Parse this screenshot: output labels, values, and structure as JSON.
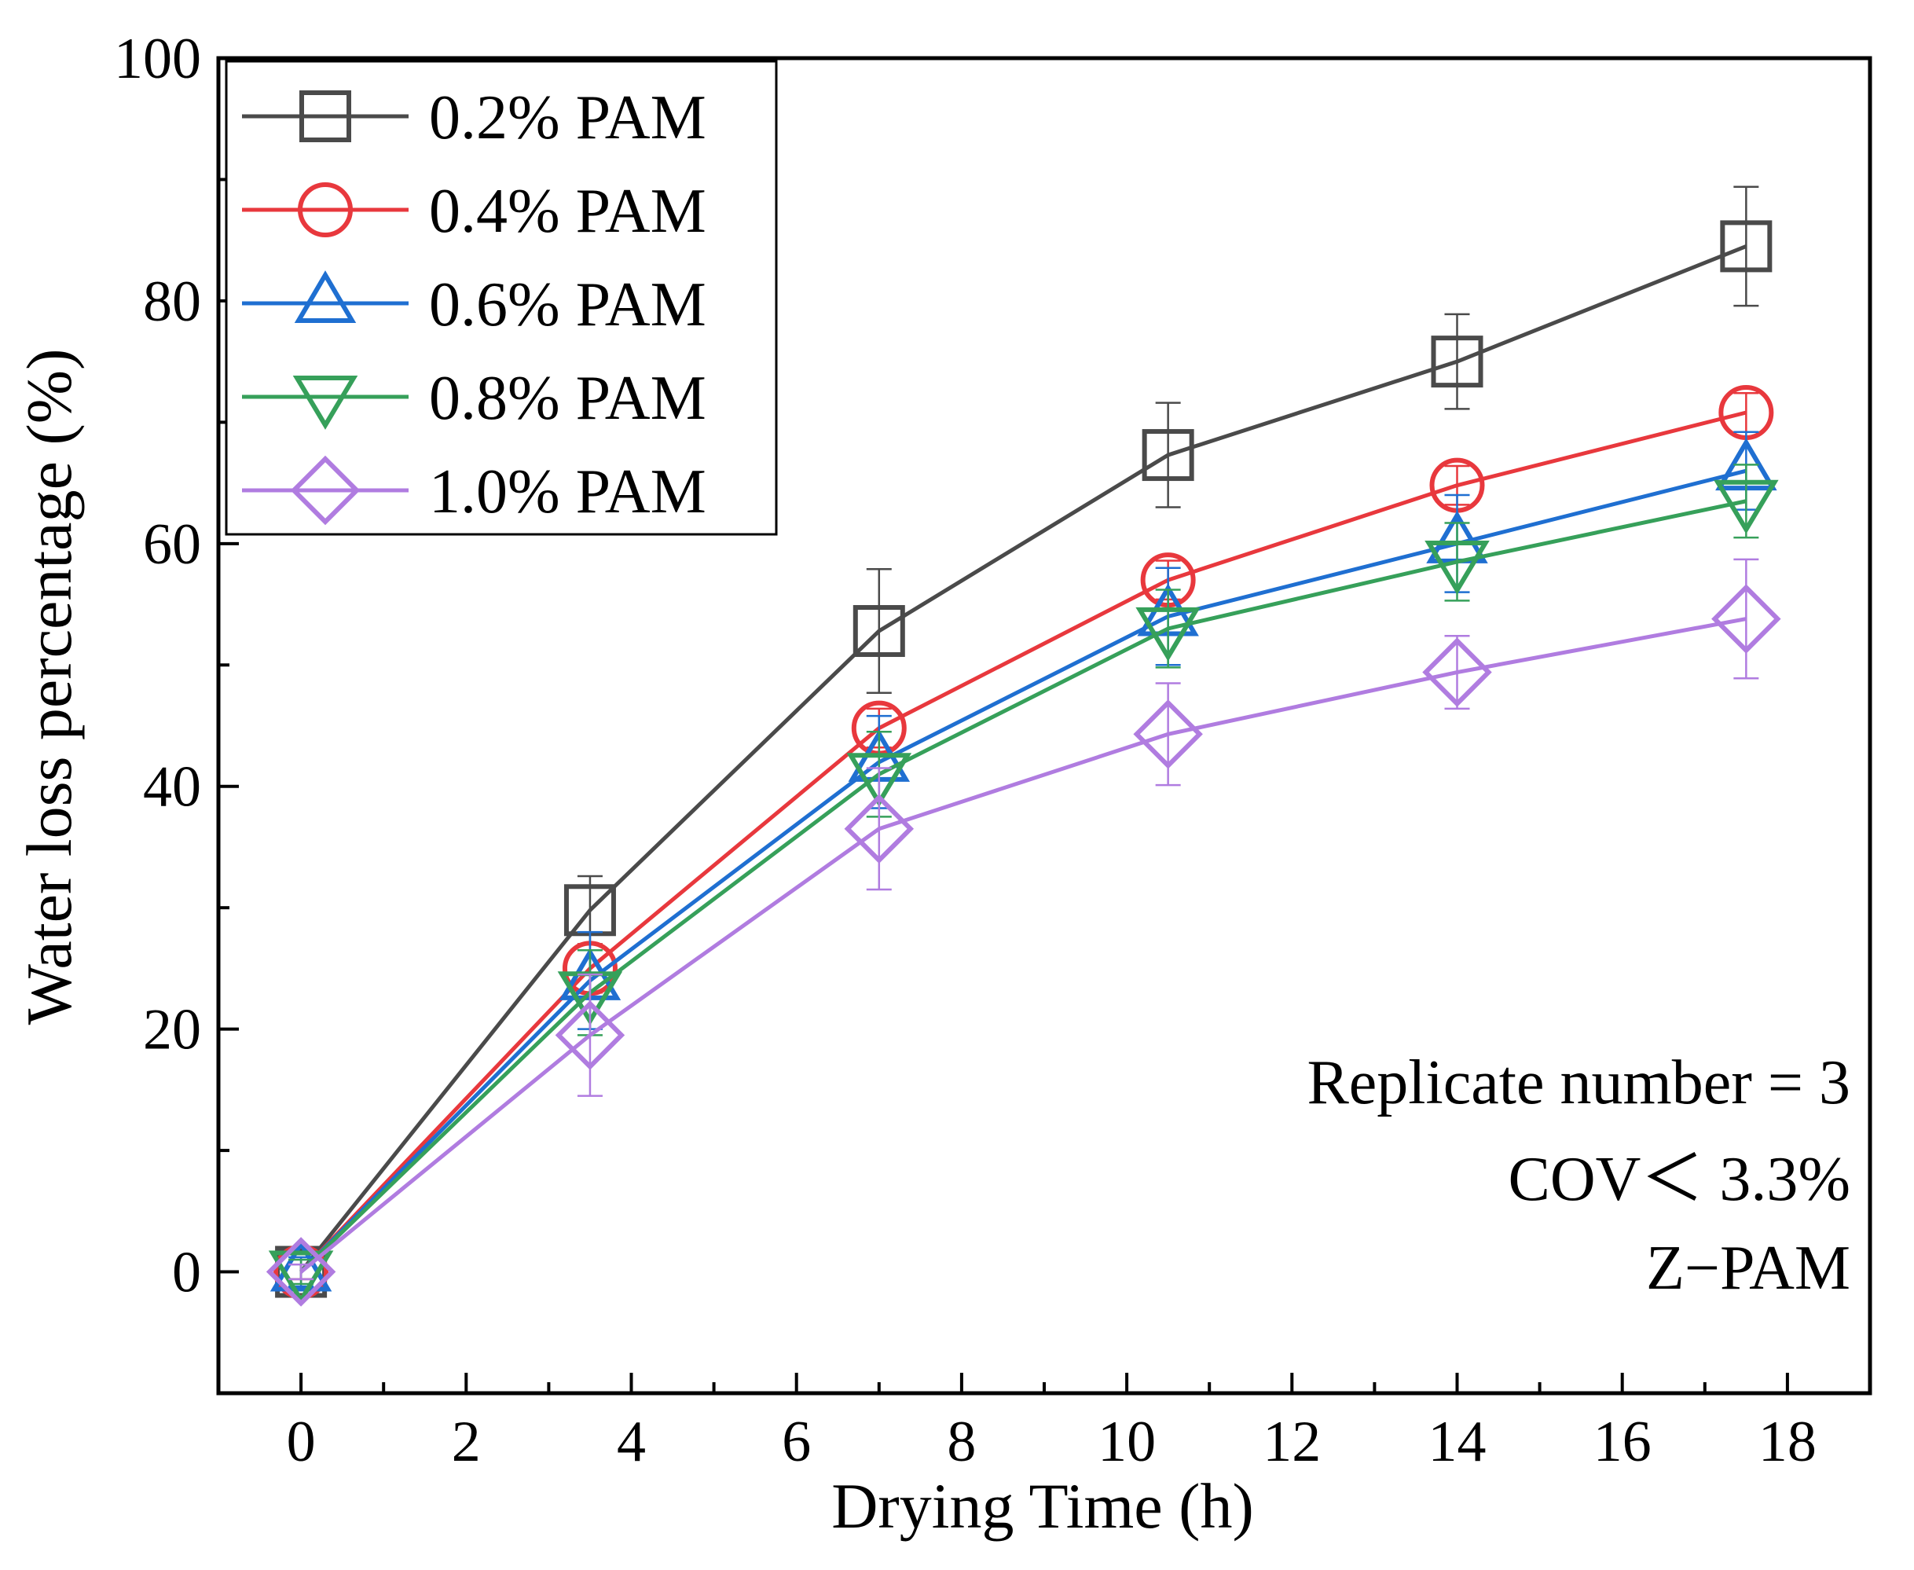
{
  "chart_data": {
    "type": "line",
    "title": "",
    "xlabel": "Drying Time (h)",
    "ylabel": "Water loss percentage (%)",
    "xlim": [
      -1,
      19
    ],
    "ylim": [
      -10,
      100
    ],
    "xticks": [
      0,
      2,
      4,
      6,
      8,
      10,
      12,
      14,
      16,
      18
    ],
    "yticks": [
      0,
      20,
      40,
      60,
      80,
      100
    ],
    "x": [
      0,
      3.5,
      7,
      10.5,
      14,
      17.5
    ],
    "series": [
      {
        "name": "0.2% PAM",
        "color": "#4a4a4a",
        "marker": "square",
        "values": [
          0,
          29.8,
          52.8,
          67.3,
          75.0,
          84.5
        ],
        "errors": [
          0.6,
          2.8,
          5.1,
          4.3,
          3.9,
          4.9
        ]
      },
      {
        "name": "0.4% PAM",
        "color": "#e8383d",
        "marker": "circle",
        "values": [
          0,
          25.0,
          44.8,
          57.0,
          64.8,
          70.8
        ],
        "errors": [
          0.6,
          2.0,
          1.6,
          1.6,
          1.6,
          1.6
        ]
      },
      {
        "name": "0.6% PAM",
        "color": "#1f6fd1",
        "marker": "triangle-up",
        "values": [
          0,
          24.0,
          42.0,
          54.0,
          60.0,
          66.0
        ],
        "errors": [
          1.2,
          4.0,
          3.8,
          4.0,
          4.0,
          3.2
        ]
      },
      {
        "name": "0.8% PAM",
        "color": "#36a05a",
        "marker": "triangle-down",
        "values": [
          0,
          23.0,
          41.0,
          53.0,
          58.5,
          63.5
        ],
        "errors": [
          1.0,
          3.5,
          3.5,
          3.2,
          3.2,
          3.0
        ]
      },
      {
        "name": "1.0% PAM",
        "color": "#b07ce0",
        "marker": "diamond",
        "values": [
          0,
          19.5,
          36.5,
          44.3,
          49.4,
          53.8
        ],
        "errors": [
          0.6,
          5.0,
          5.0,
          4.2,
          3.0,
          4.9
        ]
      }
    ],
    "legend_position": "top-left",
    "annotations": [
      "Replicate number = 3",
      "COV＜ 3.3%",
      "Z−PAM"
    ]
  }
}
